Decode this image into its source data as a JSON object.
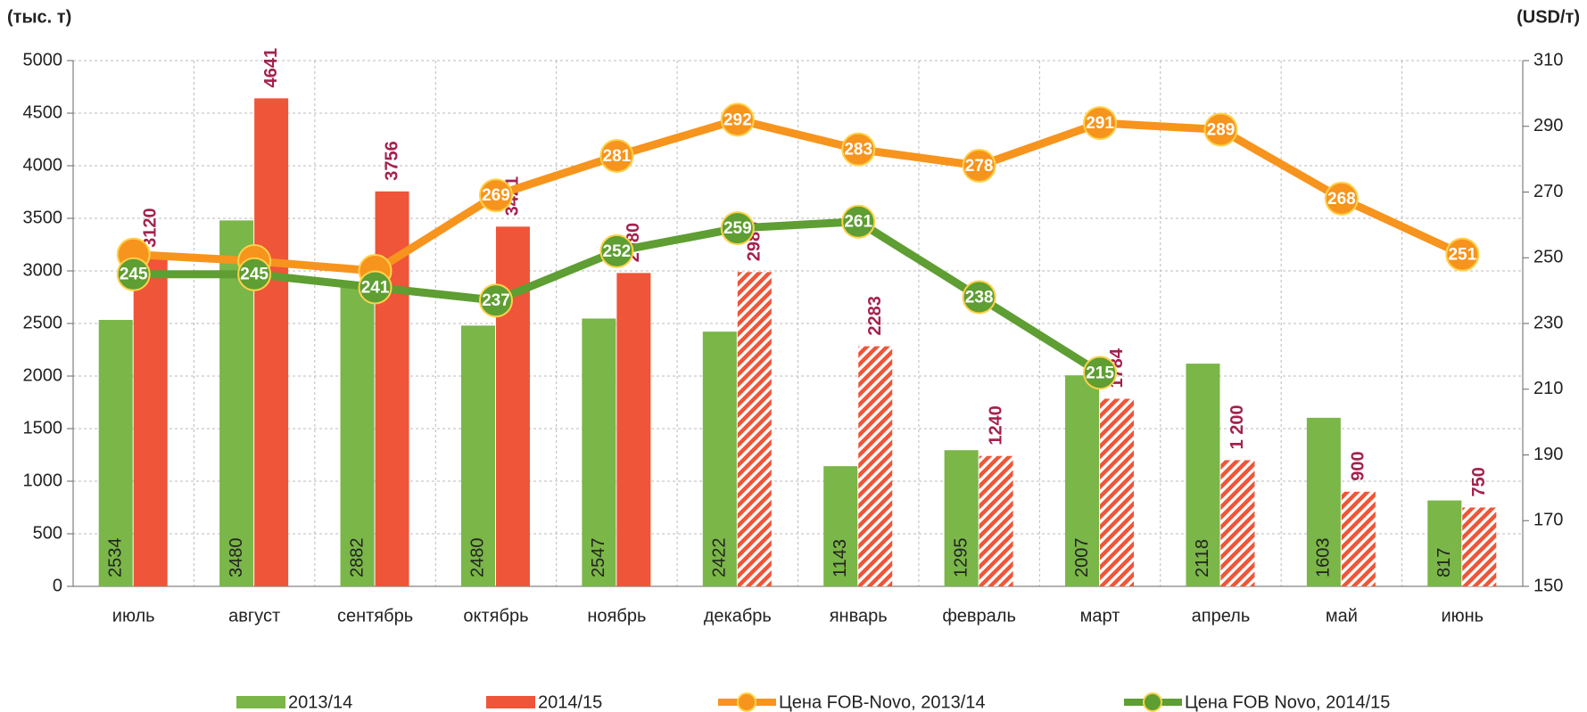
{
  "chart_data": {
    "type": "bar_line",
    "y_label": "(тыс. т)",
    "y2_label": "(USD/т)",
    "categories": [
      "июль",
      "август",
      "сентябрь",
      "октябрь",
      "ноябрь",
      "декабрь",
      "январь",
      "февраль",
      "март",
      "апрель",
      "май",
      "июнь"
    ],
    "ylim": [
      0,
      5000
    ],
    "yticks": [
      0,
      500,
      1000,
      1500,
      2000,
      2500,
      3000,
      3500,
      4000,
      4500,
      5000
    ],
    "y2lim": [
      150,
      310
    ],
    "y2ticks": [
      150,
      170,
      190,
      210,
      230,
      250,
      270,
      290,
      310
    ],
    "grid": true,
    "series": [
      {
        "name": "2013/14",
        "type": "bar",
        "color": "#7ab648",
        "label_inside": true,
        "values": [
          2534,
          3480,
          2882,
          2480,
          2547,
          2422,
          1143,
          1295,
          2007,
          2118,
          1603,
          817
        ]
      },
      {
        "name": "2014/15",
        "type": "bar",
        "color": "#ef5538",
        "label_color": "#a3214f",
        "patterns": [
          "solid",
          "solid",
          "solid",
          "solid",
          "solid",
          "hatched",
          "hatched",
          "hatched",
          "hatched",
          "hatched",
          "hatched",
          "hatched"
        ],
        "values": [
          3120,
          4641,
          3756,
          3421,
          2980,
          2989,
          2283,
          1240,
          1784,
          1200,
          900,
          750
        ],
        "value_labels": [
          "3120",
          "4641",
          "3756",
          "3421",
          "2980",
          "2989",
          "2283",
          "1240",
          "1784",
          "1 200",
          "900",
          "750"
        ]
      },
      {
        "name": "Цена FOB-Novo, 2013/14",
        "type": "line",
        "axis": "y2",
        "color": "#f7941d",
        "values": [
          251,
          249,
          246,
          269,
          281,
          292,
          283,
          278,
          291,
          289,
          268,
          251
        ],
        "value_labels": [
          null,
          null,
          null,
          "269",
          "281",
          "292",
          "283",
          "278",
          "291",
          "289",
          "268",
          "251"
        ]
      },
      {
        "name": "Цена FOB Novo, 2014/15",
        "type": "line",
        "axis": "y2",
        "color": "#5e9e32",
        "values": [
          245,
          245,
          241,
          237,
          252,
          259,
          261,
          238,
          215,
          null,
          null,
          null
        ]
      }
    ]
  }
}
